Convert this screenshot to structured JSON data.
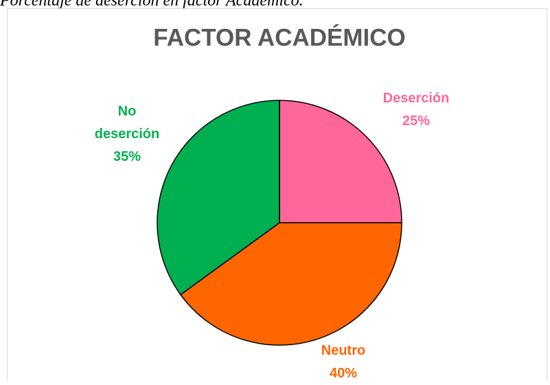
{
  "caption": "Porcentaje de deserción en factor Académico.",
  "chart_data": {
    "type": "pie",
    "title": "FACTOR ACADÉMICO",
    "categories": [
      "Deserción",
      "Neutro",
      "No deserción"
    ],
    "values": [
      25,
      40,
      35
    ],
    "value_labels": [
      "25%",
      "40%",
      "35%"
    ],
    "colors": [
      "#ff6699",
      "#ff6600",
      "#00b050"
    ]
  }
}
